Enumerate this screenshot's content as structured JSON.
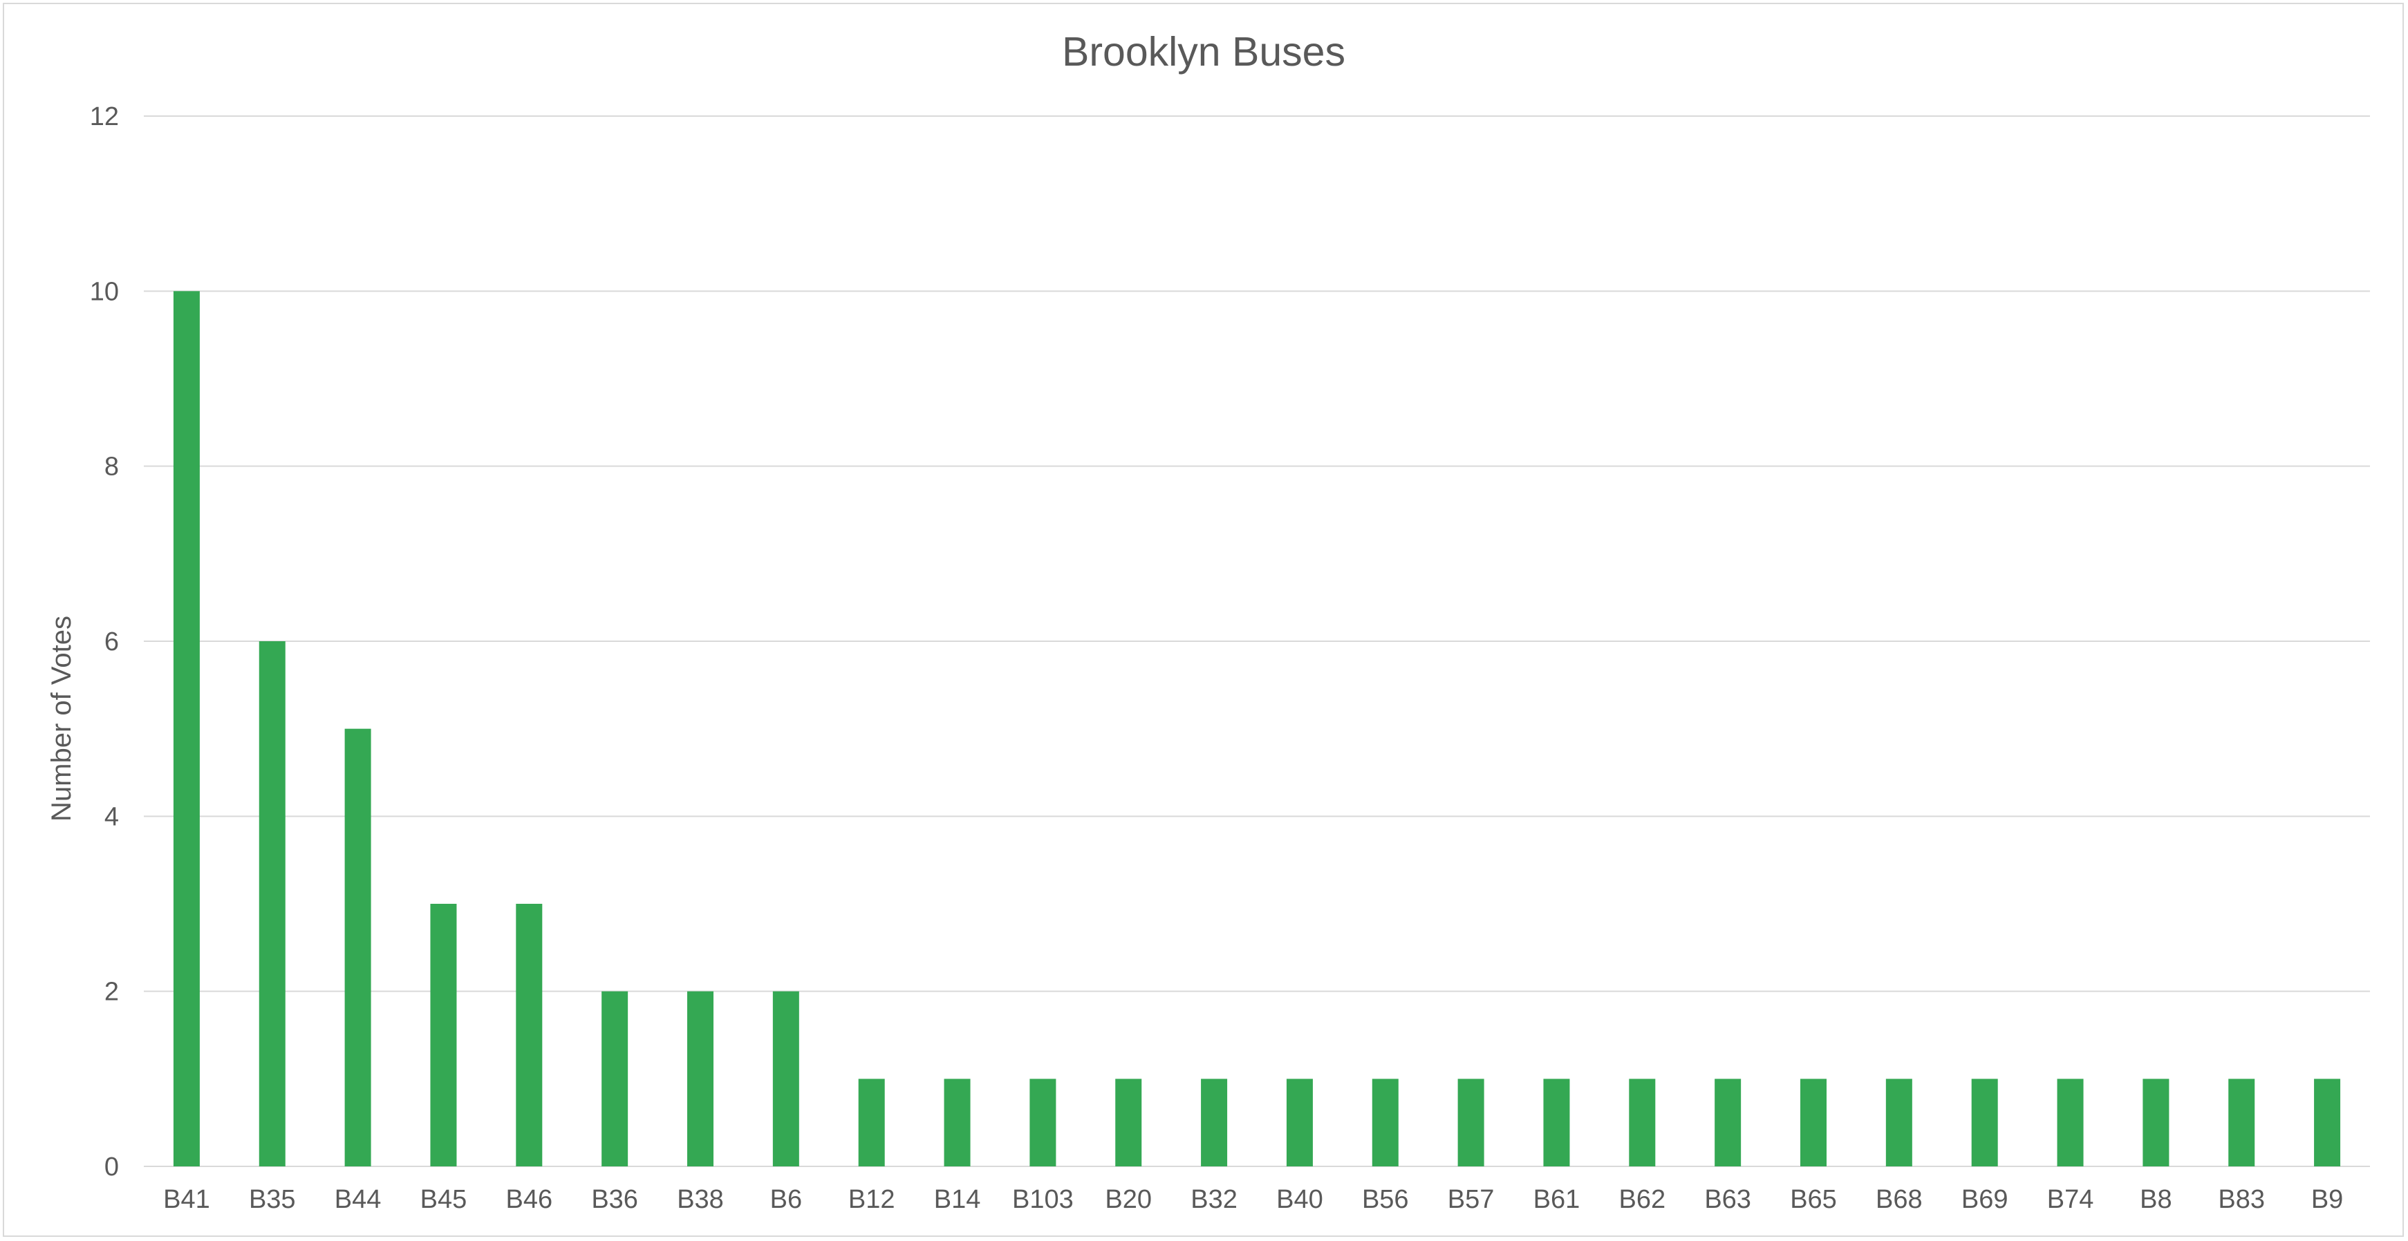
{
  "chart_data": {
    "type": "bar",
    "title": "Brooklyn Buses",
    "xlabel": "",
    "ylabel": "Number of Votes",
    "categories": [
      "B41",
      "B35",
      "B44",
      "B45",
      "B46",
      "B36",
      "B38",
      "B6",
      "B12",
      "B14",
      "B103",
      "B20",
      "B32",
      "B40",
      "B56",
      "B57",
      "B61",
      "B62",
      "B63",
      "B65",
      "B68",
      "B69",
      "B74",
      "B8",
      "B83",
      "B9"
    ],
    "values": [
      10,
      6,
      5,
      3,
      3,
      2,
      2,
      2,
      1,
      1,
      1,
      1,
      1,
      1,
      1,
      1,
      1,
      1,
      1,
      1,
      1,
      1,
      1,
      1,
      1,
      1
    ],
    "ylim": [
      0,
      12
    ],
    "yticks": [
      0,
      2,
      4,
      6,
      8,
      10,
      12
    ],
    "grid": true,
    "legend": "none",
    "colors": {
      "bar": "#34a853",
      "grid": "#d9d9d9",
      "text": "#595959",
      "border": "#d9d9d9"
    }
  }
}
